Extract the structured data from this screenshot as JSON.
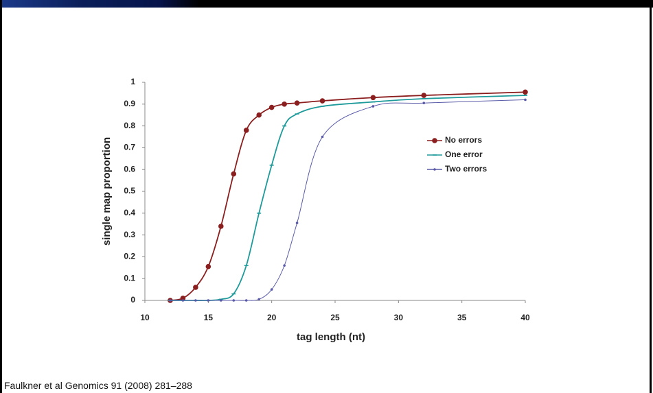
{
  "chart_data": {
    "type": "line",
    "x_label": "tag length (nt)",
    "y_label": "single map proportion",
    "x": [
      12,
      13,
      14,
      15,
      16,
      17,
      18,
      19,
      20,
      21,
      22,
      24,
      28,
      32,
      40
    ],
    "series": [
      {
        "name": "No errors",
        "color": "#8b1e1e",
        "marker": "circle",
        "values": [
          0,
          0.01,
          0.06,
          0.155,
          0.34,
          0.58,
          0.78,
          0.85,
          0.885,
          0.9,
          0.905,
          0.915,
          0.93,
          0.94,
          0.955
        ]
      },
      {
        "name": "One error",
        "color": "#1e9a9a",
        "marker": "dash",
        "values": [
          0,
          0,
          0,
          0,
          0.005,
          0.03,
          0.16,
          0.4,
          0.62,
          0.8,
          0.855,
          0.89,
          0.91,
          0.925,
          0.94
        ]
      },
      {
        "name": "Two errors",
        "color": "#5a5aa8",
        "marker": "dot",
        "values": [
          0,
          0,
          0,
          0,
          0,
          0,
          0,
          0.005,
          0.05,
          0.16,
          0.355,
          0.75,
          0.89,
          0.905,
          0.92
        ]
      }
    ],
    "xlim": [
      10,
      40
    ],
    "xticks": [
      10,
      15,
      20,
      25,
      30,
      35,
      40
    ],
    "ylim": [
      0,
      1
    ],
    "yticks": [
      0,
      0.1,
      0.2,
      0.3,
      0.4,
      0.5,
      0.6,
      0.7,
      0.8,
      0.9,
      1
    ],
    "grid": false,
    "legend": "right"
  },
  "citation": "Faulkner et al Genomics 91 (2008) 281–288"
}
